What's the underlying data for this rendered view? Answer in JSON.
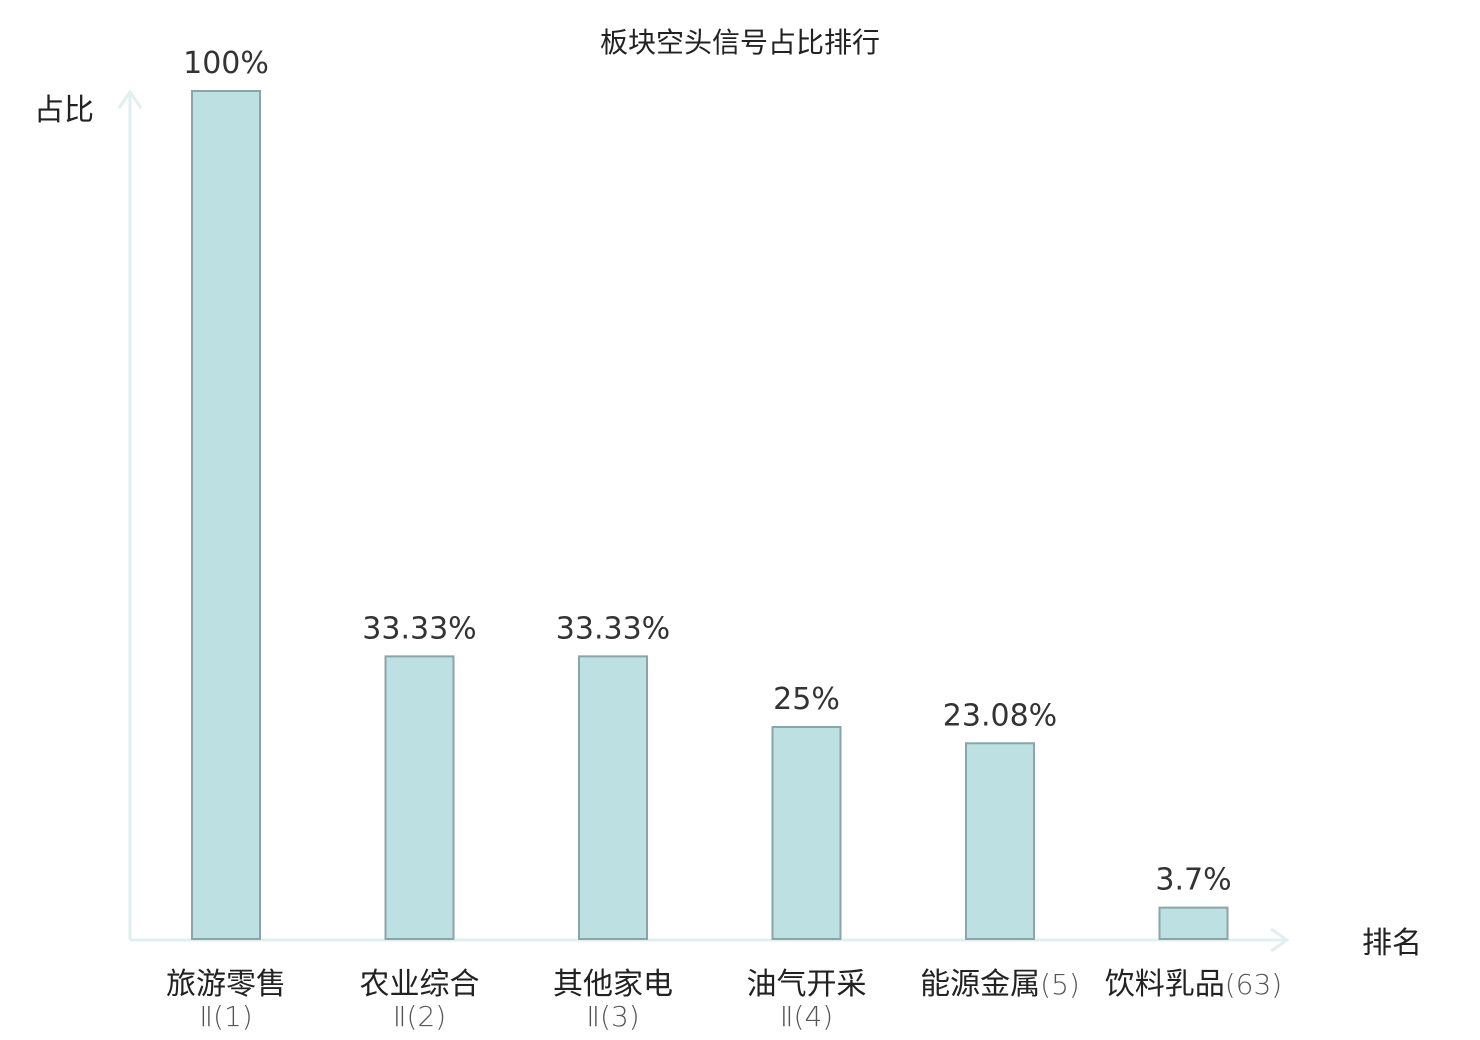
{
  "chart_data": {
    "type": "bar",
    "title": "板块空头信号占比排行",
    "ylabel": "占比",
    "xlabel": "排名",
    "ylim": [
      0,
      100
    ],
    "grid": false,
    "unit": "%",
    "categories": [
      {
        "name": "旅游零售",
        "rank": "Ⅱ(1)",
        "highlight": false
      },
      {
        "name": "农业综合",
        "rank": "Ⅱ(2)",
        "highlight": false
      },
      {
        "name": "其他家电",
        "rank": "Ⅱ(3)",
        "highlight": false
      },
      {
        "name": "油气开采",
        "rank": "Ⅱ(4)",
        "highlight": false
      },
      {
        "name": "能源金属",
        "rank": "(5)",
        "highlight": false
      },
      {
        "name": "饮料乳品",
        "rank": "(63)",
        "highlight": true
      }
    ],
    "values": [
      100,
      33.33,
      33.33,
      25,
      23.08,
      3.7
    ],
    "value_labels": [
      "100%",
      "33.33%",
      "33.33%",
      "25%",
      "23.08%",
      "3.7%"
    ],
    "colors": {
      "bar_fill": "#bde0e3",
      "bar_stroke": "#8aa5a7",
      "axis": "#dff0ee",
      "highlight_text": "#e8141c"
    }
  }
}
